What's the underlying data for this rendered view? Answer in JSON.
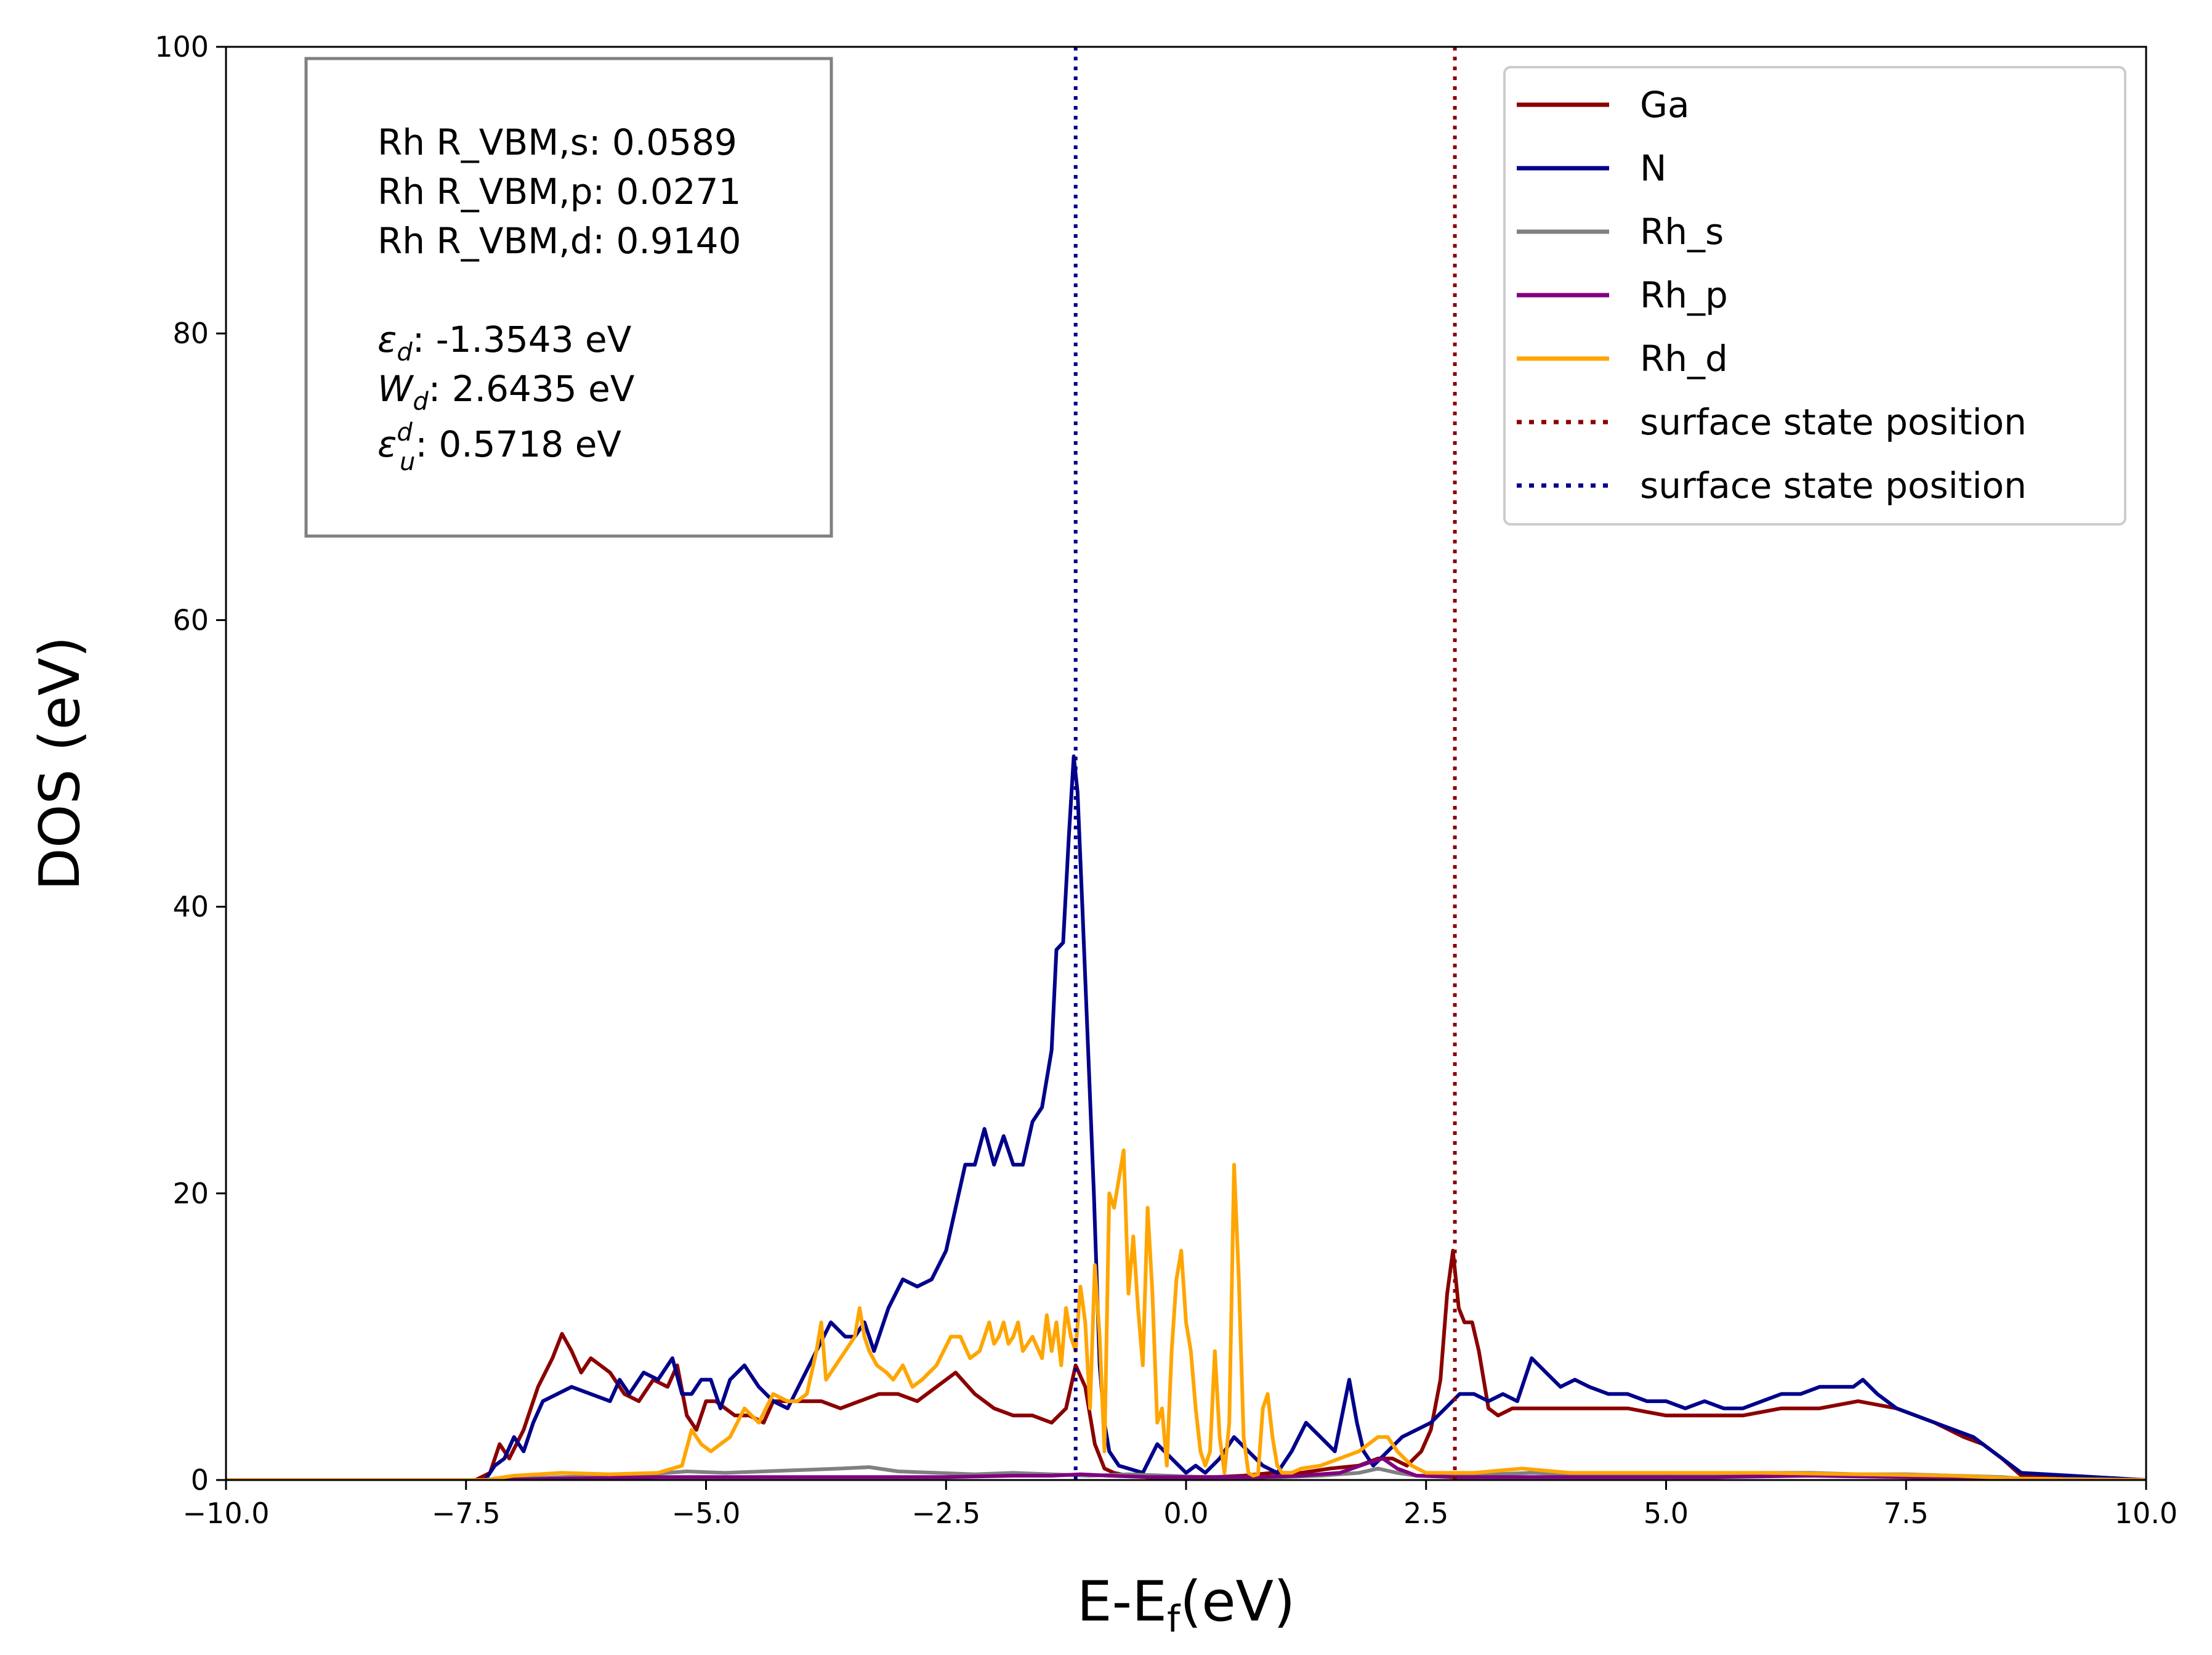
{
  "chart_data": {
    "type": "line",
    "title": "",
    "xlabel": "E-E",
    "xlabel_sub": "f",
    "xlabel_suffix": "(eV)",
    "ylabel": "DOS (eV)",
    "xlim": [
      -10,
      10
    ],
    "ylim": [
      0,
      100
    ],
    "xticks": [
      -10,
      -7.5,
      -5,
      -2.5,
      0,
      2.5,
      5,
      7.5,
      10
    ],
    "xtick_labels": [
      "−10.0",
      "−7.5",
      "−5.0",
      "−2.5",
      "0.0",
      "2.5",
      "5.0",
      "7.5",
      "10.0"
    ],
    "yticks": [
      0,
      20,
      40,
      60,
      80,
      100
    ],
    "ytick_labels": [
      "0",
      "20",
      "40",
      "60",
      "80",
      "100"
    ],
    "series": [
      {
        "name": "Ga",
        "color": "#8b0000",
        "x": [
          -10,
          -7.4,
          -7.25,
          -7.15,
          -7.05,
          -6.9,
          -6.75,
          -6.6,
          -6.5,
          -6.4,
          -6.3,
          -6.2,
          -6.1,
          -6.0,
          -5.85,
          -5.7,
          -5.55,
          -5.4,
          -5.3,
          -5.2,
          -5.1,
          -5.0,
          -4.9,
          -4.8,
          -4.7,
          -4.55,
          -4.4,
          -4.3,
          -4.15,
          -4.0,
          -3.8,
          -3.6,
          -3.4,
          -3.2,
          -3.0,
          -2.8,
          -2.6,
          -2.4,
          -2.2,
          -2.0,
          -1.8,
          -1.6,
          -1.4,
          -1.25,
          -1.15,
          -1.05,
          -0.95,
          -0.85,
          -0.75,
          -0.6,
          -0.4,
          -0.2,
          0,
          0.3,
          0.6,
          0.9,
          1.2,
          1.5,
          1.8,
          2.0,
          2.15,
          2.3,
          2.45,
          2.55,
          2.65,
          2.72,
          2.78,
          2.84,
          2.9,
          2.98,
          3.05,
          3.15,
          3.25,
          3.4,
          3.6,
          3.8,
          4.0,
          4.3,
          4.6,
          5.0,
          5.4,
          5.8,
          6.2,
          6.6,
          7.0,
          7.4,
          7.8,
          8.1,
          8.3,
          8.5,
          8.7,
          10
        ],
        "values": [
          0,
          0,
          0.5,
          2.5,
          1.5,
          3.5,
          6.5,
          8.5,
          10.2,
          9,
          7.5,
          8.5,
          8,
          7.5,
          6,
          5.5,
          7,
          6.5,
          8,
          4.5,
          3.5,
          5.5,
          5.5,
          5,
          4.5,
          4.5,
          4,
          5.5,
          5.5,
          5.5,
          5.5,
          5,
          5.5,
          6,
          6,
          5.5,
          6.5,
          7.5,
          6,
          5,
          4.5,
          4.5,
          4,
          5,
          8,
          6.5,
          2.5,
          0.8,
          0.5,
          0.3,
          0.2,
          0.2,
          0.2,
          0.2,
          0.3,
          0.5,
          0.5,
          0.8,
          1,
          1.5,
          1.5,
          1,
          2,
          3.5,
          7,
          13,
          16,
          12,
          11,
          11,
          9,
          5,
          4.5,
          5,
          5,
          5,
          5,
          5,
          5,
          4.5,
          4.5,
          4.5,
          5,
          5,
          5.5,
          5,
          4,
          3,
          2.5,
          1.5,
          0.3,
          0
        ]
      },
      {
        "name": "N",
        "color": "#00008b",
        "x": [
          -10,
          -7.3,
          -7.2,
          -7.1,
          -7.0,
          -6.9,
          -6.8,
          -6.7,
          -6.55,
          -6.4,
          -6.2,
          -6.0,
          -5.9,
          -5.8,
          -5.65,
          -5.5,
          -5.35,
          -5.25,
          -5.15,
          -5.05,
          -4.95,
          -4.85,
          -4.75,
          -4.6,
          -4.45,
          -4.3,
          -4.15,
          -4.0,
          -3.85,
          -3.7,
          -3.55,
          -3.45,
          -3.35,
          -3.25,
          -3.1,
          -2.95,
          -2.8,
          -2.65,
          -2.5,
          -2.4,
          -2.3,
          -2.2,
          -2.1,
          -2.0,
          -1.9,
          -1.8,
          -1.7,
          -1.6,
          -1.5,
          -1.4,
          -1.35,
          -1.28,
          -1.22,
          -1.17,
          -1.13,
          -1.08,
          -1.02,
          -0.96,
          -0.9,
          -0.85,
          -0.8,
          -0.7,
          -0.6,
          -0.45,
          -0.3,
          -0.15,
          0,
          0.1,
          0.2,
          0.35,
          0.5,
          0.65,
          0.8,
          0.95,
          1.1,
          1.25,
          1.4,
          1.55,
          1.7,
          1.78,
          1.85,
          1.95,
          2.1,
          2.25,
          2.4,
          2.55,
          2.7,
          2.85,
          3.0,
          3.15,
          3.3,
          3.45,
          3.6,
          3.75,
          3.9,
          4.05,
          4.2,
          4.4,
          4.6,
          4.8,
          5.0,
          5.2,
          5.4,
          5.6,
          5.8,
          6.0,
          6.2,
          6.4,
          6.6,
          6.8,
          6.95,
          7.05,
          7.2,
          7.4,
          7.6,
          7.8,
          8.0,
          8.2,
          8.4,
          8.6,
          8.7,
          10
        ],
        "values": [
          0,
          0,
          1,
          1.5,
          3,
          2,
          4,
          5.5,
          6,
          6.5,
          6,
          5.5,
          7,
          6,
          7.5,
          7,
          8.5,
          6,
          6,
          7,
          7,
          5,
          7,
          8,
          6.5,
          5.5,
          5,
          7,
          9,
          11,
          10,
          10,
          11,
          9,
          12,
          14,
          13.5,
          14,
          16,
          19,
          22,
          22,
          24.5,
          22,
          24,
          22,
          22,
          25,
          26,
          30,
          37,
          37.5,
          45,
          50.5,
          48,
          40,
          30,
          20,
          8,
          4,
          2,
          1,
          0.8,
          0.5,
          2.5,
          1.5,
          0.5,
          1,
          0.5,
          1.5,
          3,
          2,
          1,
          0.5,
          2,
          4,
          3,
          2,
          7,
          4,
          2,
          1,
          2,
          3,
          3.5,
          4,
          5,
          6,
          6,
          5.5,
          6,
          5.5,
          8.5,
          7.5,
          6.5,
          7,
          6.5,
          6,
          6,
          5.5,
          5.5,
          5,
          5.5,
          5,
          5,
          5.5,
          6,
          6,
          6.5,
          6.5,
          6.5,
          7,
          6,
          5,
          4.5,
          4,
          3.5,
          3,
          2,
          1,
          0.5,
          0
        ]
      },
      {
        "name": "Rh_s",
        "color": "#808080",
        "x": [
          -10,
          -7.3,
          -6.5,
          -5.8,
          -5.2,
          -4.8,
          -4.4,
          -4.0,
          -3.6,
          -3.3,
          -3.0,
          -2.6,
          -2.2,
          -1.8,
          -1.4,
          -1.0,
          -0.6,
          -0.2,
          0.2,
          0.6,
          1.0,
          1.4,
          1.8,
          2.0,
          2.2,
          2.4,
          2.8,
          3.2,
          3.6,
          4.0,
          4.5,
          5.0,
          5.5,
          6.0,
          6.5,
          7.0,
          7.5,
          8.0,
          8.5,
          8.7,
          10
        ],
        "values": [
          0,
          0,
          0.2,
          0.3,
          0.6,
          0.5,
          0.6,
          0.7,
          0.8,
          0.9,
          0.6,
          0.5,
          0.4,
          0.5,
          0.4,
          0.3,
          0.4,
          0.3,
          0.2,
          0.2,
          0.2,
          0.3,
          0.5,
          0.8,
          0.5,
          0.3,
          0.3,
          0.4,
          0.5,
          0.4,
          0.4,
          0.4,
          0.4,
          0.5,
          0.5,
          0.4,
          0.4,
          0.3,
          0.2,
          0.1,
          0
        ]
      },
      {
        "name": "Rh_p",
        "color": "#800080",
        "x": [
          -10,
          -7.3,
          -6.5,
          -5.5,
          -4.5,
          -3.5,
          -2.5,
          -1.8,
          -1.4,
          -1.1,
          -0.8,
          -0.4,
          0,
          0.4,
          0.8,
          1.2,
          1.6,
          1.9,
          2.05,
          2.2,
          2.4,
          2.8,
          3.5,
          4.5,
          5.5,
          6.5,
          7.5,
          8.5,
          8.7,
          10
        ],
        "values": [
          0,
          0,
          0.1,
          0.2,
          0.2,
          0.2,
          0.2,
          0.3,
          0.3,
          0.4,
          0.3,
          0.2,
          0.2,
          0.2,
          0.2,
          0.3,
          0.5,
          1.2,
          1.5,
          0.8,
          0.3,
          0.2,
          0.2,
          0.2,
          0.2,
          0.3,
          0.2,
          0.1,
          0,
          0
        ]
      },
      {
        "name": "Rh_d",
        "color": "#ffa500",
        "x": [
          -10,
          -7.3,
          -7.0,
          -6.5,
          -6.0,
          -5.5,
          -5.25,
          -5.15,
          -5.05,
          -4.95,
          -4.85,
          -4.75,
          -4.6,
          -4.45,
          -4.3,
          -4.15,
          -4.05,
          -3.95,
          -3.85,
          -3.8,
          -3.75,
          -3.65,
          -3.55,
          -3.45,
          -3.4,
          -3.35,
          -3.3,
          -3.22,
          -3.12,
          -3.05,
          -2.95,
          -2.85,
          -2.75,
          -2.6,
          -2.45,
          -2.35,
          -2.25,
          -2.15,
          -2.05,
          -2.0,
          -1.95,
          -1.9,
          -1.85,
          -1.8,
          -1.75,
          -1.7,
          -1.6,
          -1.5,
          -1.45,
          -1.4,
          -1.35,
          -1.3,
          -1.25,
          -1.2,
          -1.15,
          -1.1,
          -1.05,
          -1.0,
          -0.95,
          -0.9,
          -0.85,
          -0.8,
          -0.75,
          -0.7,
          -0.65,
          -0.6,
          -0.55,
          -0.5,
          -0.45,
          -0.4,
          -0.35,
          -0.3,
          -0.25,
          -0.2,
          -0.15,
          -0.1,
          -0.05,
          0,
          0.05,
          0.1,
          0.15,
          0.2,
          0.25,
          0.3,
          0.35,
          0.4,
          0.45,
          0.5,
          0.55,
          0.6,
          0.65,
          0.7,
          0.75,
          0.8,
          0.85,
          0.9,
          0.95,
          1.0,
          1.1,
          1.2,
          1.4,
          1.6,
          1.8,
          1.9,
          2.0,
          2.1,
          2.2,
          2.35,
          2.5,
          2.7,
          3.0,
          3.5,
          4.0,
          5.0,
          6.0,
          7.0,
          8.0,
          8.7,
          10
        ],
        "values": [
          0,
          0,
          0.3,
          0.5,
          0.4,
          0.5,
          1,
          3.5,
          2.5,
          2,
          2.5,
          3,
          5,
          4,
          6,
          5.5,
          5.5,
          6,
          9,
          11,
          7,
          8,
          9,
          10,
          12,
          10,
          9,
          8,
          7.5,
          7,
          8,
          6.5,
          7,
          8,
          10,
          10,
          8.5,
          9,
          11,
          9.5,
          10,
          11,
          9.5,
          10,
          11,
          9,
          10,
          8.5,
          11.5,
          9,
          11,
          8,
          12,
          10,
          9,
          13.5,
          11,
          5,
          15,
          10,
          2,
          20,
          19,
          21,
          23,
          13,
          17,
          12,
          8,
          19,
          13,
          4,
          5,
          1,
          9,
          14,
          16,
          11,
          9,
          5,
          2,
          1,
          2,
          9,
          3,
          0.5,
          4,
          22,
          14,
          3,
          0.5,
          0.3,
          0.4,
          5,
          6,
          3,
          1,
          0.5,
          0.5,
          0.8,
          1,
          1.5,
          2,
          2.5,
          3,
          3,
          2,
          1,
          0.5,
          0.5,
          0.5,
          0.8,
          0.5,
          0.5,
          0.5,
          0.4,
          0.3,
          0.1,
          0
        ]
      }
    ],
    "vlines": [
      {
        "name": "surface state position",
        "x": 2.8,
        "color": "#8b0000",
        "style": "dotted"
      },
      {
        "name": "surface state position",
        "x": -1.15,
        "color": "#00008b",
        "style": "dotted"
      }
    ],
    "legend_position": "top-right",
    "legend": [
      {
        "label": "Ga",
        "color": "#8b0000",
        "style": "solid"
      },
      {
        "label": "N",
        "color": "#00008b",
        "style": "solid"
      },
      {
        "label": "Rh_s",
        "color": "#808080",
        "style": "solid"
      },
      {
        "label": "Rh_p",
        "color": "#800080",
        "style": "solid"
      },
      {
        "label": "Rh_d",
        "color": "#ffa500",
        "style": "solid"
      },
      {
        "label": "surface state position",
        "color": "#8b0000",
        "style": "dotted"
      },
      {
        "label": "surface state position",
        "color": "#00008b",
        "style": "dotted"
      }
    ],
    "annotation": {
      "lines": [
        "Rh R_VBM,s: 0.0589",
        "Rh R_VBM,p: 0.0271",
        "Rh R_VBM,d: 0.9140"
      ],
      "eps_d": {
        "symbol": "ε",
        "sub": "d",
        "value": ": -1.3543 eV"
      },
      "w_d": {
        "symbol": "W",
        "sub": "d",
        "value": ": 2.6435 eV"
      },
      "eps_u": {
        "symbol": "ε",
        "sup": "d",
        "sub": "u",
        "value": ": 0.5718 eV"
      }
    }
  }
}
